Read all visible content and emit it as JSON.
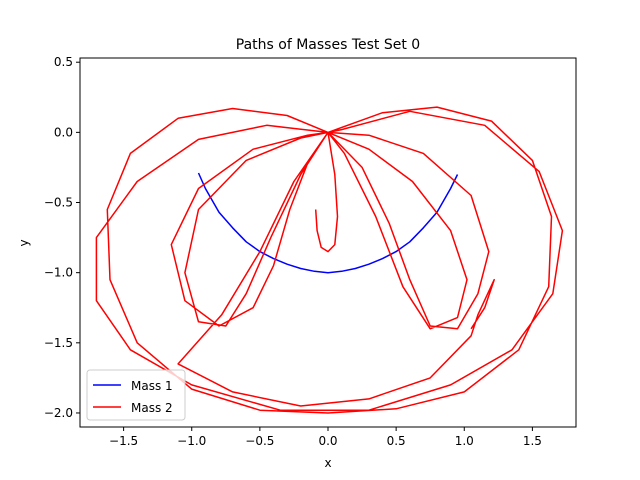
{
  "chart_data": {
    "type": "line",
    "title": "Paths of Masses Test Set 0",
    "xlabel": "x",
    "ylabel": "y",
    "xlim": [
      -1.82,
      1.82
    ],
    "ylim": [
      -2.1,
      0.53
    ],
    "x_ticks": [
      {
        "value": -1.5,
        "label": "−1.5"
      },
      {
        "value": -1.0,
        "label": "−1.0"
      },
      {
        "value": -0.5,
        "label": "−0.5"
      },
      {
        "value": 0.0,
        "label": "0.0"
      },
      {
        "value": 0.5,
        "label": "0.5"
      },
      {
        "value": 1.0,
        "label": "1.0"
      },
      {
        "value": 1.5,
        "label": "1.5"
      }
    ],
    "y_ticks": [
      {
        "value": 0.5,
        "label": "0.5"
      },
      {
        "value": 0.0,
        "label": "0.0"
      },
      {
        "value": -0.5,
        "label": "−0.5"
      },
      {
        "value": -1.0,
        "label": "−1.0"
      },
      {
        "value": -1.5,
        "label": "−1.5"
      },
      {
        "value": -2.0,
        "label": "−2.0"
      }
    ],
    "grid": false,
    "legend_position": "lower-left",
    "series": [
      {
        "name": "Mass 1",
        "color": "#0000ff",
        "points": [
          [
            -0.95,
            -0.29
          ],
          [
            -0.9,
            -0.4
          ],
          [
            -0.8,
            -0.57
          ],
          [
            -0.7,
            -0.68
          ],
          [
            -0.6,
            -0.78
          ],
          [
            -0.5,
            -0.85
          ],
          [
            -0.4,
            -0.9
          ],
          [
            -0.3,
            -0.94
          ],
          [
            -0.2,
            -0.97
          ],
          [
            -0.1,
            -0.99
          ],
          [
            0.0,
            -1.0
          ],
          [
            0.1,
            -0.99
          ],
          [
            0.2,
            -0.97
          ],
          [
            0.3,
            -0.94
          ],
          [
            0.4,
            -0.9
          ],
          [
            0.5,
            -0.85
          ],
          [
            0.6,
            -0.78
          ],
          [
            0.7,
            -0.68
          ],
          [
            0.8,
            -0.57
          ],
          [
            0.9,
            -0.4
          ],
          [
            0.95,
            -0.3
          ]
        ]
      },
      {
        "name": "Mass 2",
        "color": "#ff0000",
        "points": [
          [
            -0.09,
            -0.55
          ],
          [
            -0.08,
            -0.7
          ],
          [
            -0.05,
            -0.82
          ],
          [
            0.0,
            -0.85
          ],
          [
            0.05,
            -0.8
          ],
          [
            0.07,
            -0.6
          ],
          [
            0.05,
            -0.3
          ],
          [
            0.0,
            0.0
          ],
          [
            -0.3,
            0.12
          ],
          [
            -0.7,
            0.17
          ],
          [
            -1.1,
            0.1
          ],
          [
            -1.45,
            -0.15
          ],
          [
            -1.62,
            -0.55
          ],
          [
            -1.6,
            -1.05
          ],
          [
            -1.4,
            -1.5
          ],
          [
            -1.0,
            -1.83
          ],
          [
            -0.5,
            -1.98
          ],
          [
            0.0,
            -2.0
          ],
          [
            0.5,
            -1.97
          ],
          [
            1.0,
            -1.85
          ],
          [
            1.4,
            -1.55
          ],
          [
            1.62,
            -1.1
          ],
          [
            1.64,
            -0.6
          ],
          [
            1.5,
            -0.2
          ],
          [
            1.2,
            0.08
          ],
          [
            0.8,
            0.18
          ],
          [
            0.4,
            0.14
          ],
          [
            0.0,
            0.0
          ],
          [
            -0.2,
            -0.3
          ],
          [
            -0.42,
            -0.75
          ],
          [
            -0.6,
            -1.15
          ],
          [
            -0.75,
            -1.38
          ],
          [
            -0.95,
            -1.35
          ],
          [
            -1.05,
            -1.0
          ],
          [
            -0.95,
            -0.55
          ],
          [
            -0.6,
            -0.2
          ],
          [
            -0.2,
            -0.04
          ],
          [
            0.0,
            0.0
          ],
          [
            0.3,
            -0.12
          ],
          [
            0.62,
            -0.35
          ],
          [
            0.9,
            -0.7
          ],
          [
            1.02,
            -1.05
          ],
          [
            0.95,
            -1.32
          ],
          [
            0.75,
            -1.4
          ],
          [
            0.55,
            -1.1
          ],
          [
            0.35,
            -0.6
          ],
          [
            0.12,
            -0.15
          ],
          [
            0.0,
            0.0
          ],
          [
            -0.45,
            0.05
          ],
          [
            -0.95,
            -0.05
          ],
          [
            -1.4,
            -0.35
          ],
          [
            -1.7,
            -0.75
          ],
          [
            -1.7,
            -1.2
          ],
          [
            -1.45,
            -1.55
          ],
          [
            -1.0,
            -1.8
          ],
          [
            -0.35,
            -1.98
          ],
          [
            0.3,
            -1.98
          ],
          [
            0.9,
            -1.8
          ],
          [
            1.35,
            -1.55
          ],
          [
            1.65,
            -1.15
          ],
          [
            1.72,
            -0.7
          ],
          [
            1.55,
            -0.28
          ],
          [
            1.15,
            0.05
          ],
          [
            0.6,
            0.15
          ],
          [
            0.1,
            0.02
          ],
          [
            0.0,
            0.0
          ],
          [
            -0.15,
            -0.22
          ],
          [
            -0.28,
            -0.55
          ],
          [
            -0.4,
            -0.95
          ],
          [
            -0.55,
            -1.25
          ],
          [
            -0.8,
            -1.38
          ],
          [
            -1.05,
            -1.2
          ],
          [
            -1.15,
            -0.8
          ],
          [
            -0.95,
            -0.4
          ],
          [
            -0.55,
            -0.12
          ],
          [
            -0.15,
            -0.02
          ],
          [
            0.0,
            0.0
          ],
          [
            0.25,
            -0.25
          ],
          [
            0.45,
            -0.65
          ],
          [
            0.6,
            -1.05
          ],
          [
            0.75,
            -1.38
          ],
          [
            0.95,
            -1.4
          ],
          [
            1.1,
            -1.15
          ],
          [
            1.18,
            -0.85
          ],
          [
            1.05,
            -0.45
          ],
          [
            0.7,
            -0.15
          ],
          [
            0.3,
            -0.02
          ],
          [
            0.0,
            0.0
          ],
          [
            -0.25,
            -0.35
          ],
          [
            -0.5,
            -0.85
          ],
          [
            -0.78,
            -1.3
          ],
          [
            -1.1,
            -1.65
          ],
          [
            -0.7,
            -1.85
          ],
          [
            -0.2,
            -1.95
          ],
          [
            0.3,
            -1.9
          ],
          [
            0.75,
            -1.75
          ],
          [
            1.05,
            -1.45
          ],
          [
            1.1,
            -1.3
          ],
          [
            1.22,
            -1.05
          ],
          [
            1.15,
            -1.25
          ],
          [
            1.05,
            -1.4
          ]
        ]
      }
    ]
  }
}
